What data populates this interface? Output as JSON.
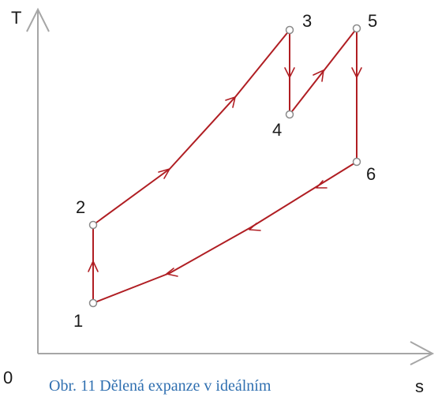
{
  "axes": {
    "y_label": "T",
    "x_label": "s",
    "origin_label": "0"
  },
  "states": [
    "1",
    "2",
    "3",
    "4",
    "5",
    "6"
  ],
  "caption": "Obr. 11 Dělená expanze v ideálním",
  "colors": {
    "process": "#b01e23",
    "axis": "#a6a6a6",
    "point": "#8a8a8a",
    "caption": "#2f6fb0"
  }
}
